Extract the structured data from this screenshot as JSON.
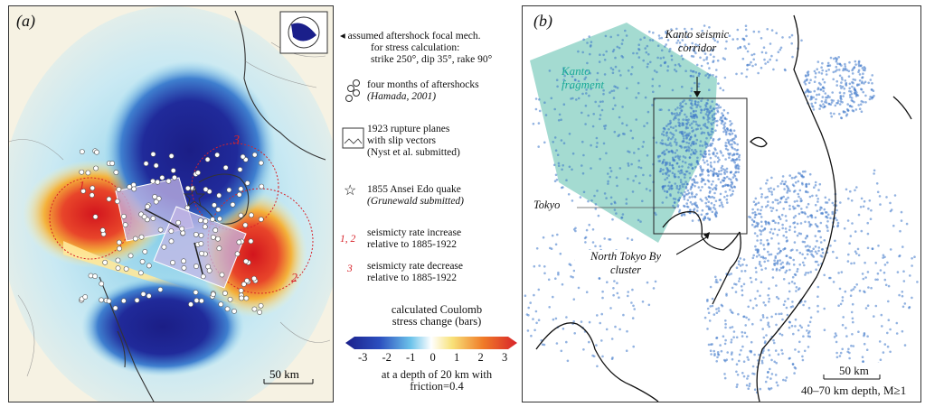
{
  "panel_a": {
    "label": "(a)",
    "markers": [
      "1",
      "2",
      "3"
    ],
    "scale": "50 km"
  },
  "panel_b": {
    "label": "(b)",
    "kanto_fragment": [
      "Kanto",
      "fragment"
    ],
    "kanto_corridor": [
      "Kanto seismic",
      "corridor"
    ],
    "tokyo": "Tokyo",
    "cluster": [
      "North Tokyo By",
      "cluster"
    ],
    "scale": "50 km",
    "depth_note": "40–70 km depth, M≥1"
  },
  "legend": {
    "focal_mech": [
      "assumed aftershock focal mech.",
      "for stress calculation:",
      "strike 250°, dip 35°, rake 90°"
    ],
    "aftershocks": [
      "four months of aftershocks",
      "(Hamada, 2001)"
    ],
    "rupture": [
      "1923 rupture planes",
      "with slip vectors",
      "(Nyst et al. submitted)"
    ],
    "ansei": [
      "1855 Ansei Edo quake",
      "(Grunewald submitted)"
    ],
    "increase_marker": "1, 2",
    "increase": [
      "seismicty rate increase",
      "relative to 1885-1922"
    ],
    "decrease_marker": "3",
    "decrease": [
      "seismicty rate decrease",
      "relative to 1885-1922"
    ],
    "colorbar_title": [
      "calculated Coulomb",
      "stress change (bars)"
    ],
    "colorbar_ticks": [
      "-3",
      "-2",
      "-1",
      "0",
      "1",
      "2",
      "3"
    ],
    "colorbar_note": [
      "at a depth of 20 km with",
      "friction=0.4"
    ]
  },
  "colors": {
    "negative_deep": "#1a1f8a",
    "positive_deep": "#d8232a",
    "quake_dots": "#3b74c9",
    "fragment": "#86cfc2"
  }
}
